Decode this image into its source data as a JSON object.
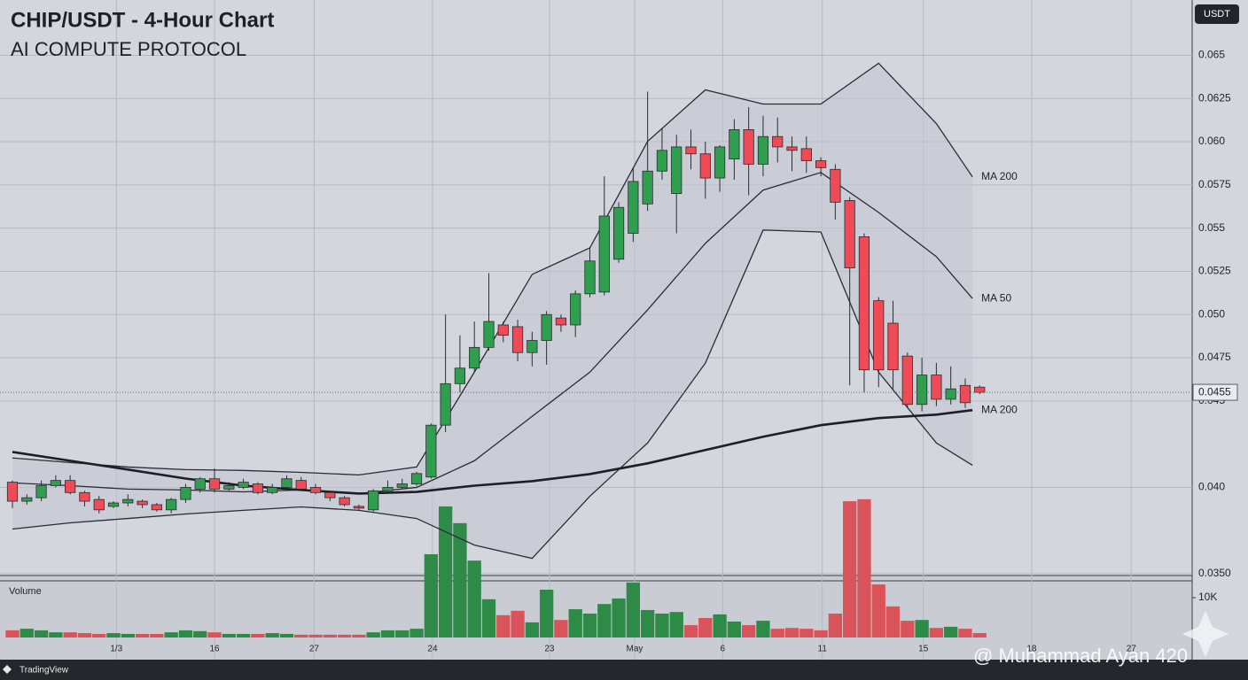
{
  "chart_data": {
    "type": "candlestick",
    "title": "CHIP/USDT - 4-Hour Chart",
    "subtitle": "AI COMPUTE PROTOCOL",
    "currency_button": "USDT",
    "volume_label": "Volume",
    "brand": "TradingView",
    "watermark": "@ Muhammad Ayan 420",
    "up_color": "#2f9e4f",
    "down_color": "#ef4a55",
    "grid": true,
    "xlim": [
      -0.86,
      81.72
    ],
    "xticks": [
      {
        "value": 7.2,
        "label": "1/3"
      },
      {
        "value": 14,
        "label": "16"
      },
      {
        "value": 20.9,
        "label": "27"
      },
      {
        "value": 29.1,
        "label": "24"
      },
      {
        "value": 37.2,
        "label": "23"
      },
      {
        "value": 43.1,
        "label": "May"
      },
      {
        "value": 49.2,
        "label": "6"
      },
      {
        "value": 56.1,
        "label": "11"
      },
      {
        "value": 63.1,
        "label": "15"
      },
      {
        "value": 70.6,
        "label": "18"
      },
      {
        "value": 77.5,
        "label": "27"
      }
    ],
    "ylim": [
      0.0349,
      0.0682
    ],
    "yticks": [
      0.065,
      0.0625,
      {
        "value": 0.06,
        "label": "0.060"
      },
      0.0575,
      0.055,
      0.0525,
      {
        "value": 0.05,
        "label": "0.050"
      },
      0.0475,
      0.045,
      {
        "value": 0.04,
        "label": "0.040"
      },
      {
        "value": 0.035,
        "label": "0.0350"
      }
    ],
    "last_price": 0.0455,
    "open": [
      0.0403,
      0.0392,
      0.0394,
      0.0401,
      0.0404,
      0.0397,
      0.0393,
      0.0389,
      0.0391,
      0.0392,
      0.039,
      0.0387,
      0.0393,
      0.0399,
      0.0405,
      0.0399,
      0.04,
      0.0402,
      0.0397,
      0.04,
      0.0404,
      0.04,
      0.0397,
      0.0394,
      0.0389,
      0.0387,
      0.0398,
      0.04,
      0.0402,
      0.0406,
      0.0436,
      0.046,
      0.0469,
      0.0481,
      0.0494,
      0.0493,
      0.0478,
      0.0485,
      0.0498,
      0.0494,
      0.0512,
      0.0513,
      0.0532,
      0.0547,
      0.0564,
      0.0583,
      0.057,
      0.0597,
      0.0593,
      0.0579,
      0.059,
      0.0607,
      0.0587,
      0.0603,
      0.0597,
      0.0596,
      0.0589,
      0.0584,
      0.0566,
      0.0545,
      0.0508,
      0.0495,
      0.0476,
      0.0448,
      0.0465,
      0.0451,
      0.0459,
      0.0458
    ],
    "high": [
      0.0404,
      0.0396,
      0.0404,
      0.0407,
      0.0407,
      0.0398,
      0.0395,
      0.0392,
      0.0396,
      0.0393,
      0.0391,
      0.0394,
      0.0402,
      0.0406,
      0.0411,
      0.0403,
      0.0405,
      0.0403,
      0.0402,
      0.0407,
      0.0406,
      0.0402,
      0.0398,
      0.0395,
      0.039,
      0.0399,
      0.0404,
      0.0405,
      0.0409,
      0.0437,
      0.05,
      0.0488,
      0.0496,
      0.0524,
      0.0496,
      0.0497,
      0.049,
      0.0502,
      0.05,
      0.0514,
      0.0539,
      0.058,
      0.0565,
      0.0585,
      0.0629,
      0.0608,
      0.0604,
      0.0607,
      0.06,
      0.0598,
      0.0613,
      0.062,
      0.0615,
      0.0614,
      0.0603,
      0.0603,
      0.0591,
      0.0587,
      0.0568,
      0.0547,
      0.051,
      0.0508,
      0.0478,
      0.0475,
      0.0472,
      0.047,
      0.0463,
      0.0459
    ],
    "low": [
      0.0388,
      0.039,
      0.0392,
      0.04,
      0.0396,
      0.0389,
      0.0385,
      0.0388,
      0.0389,
      0.0388,
      0.0386,
      0.0385,
      0.0391,
      0.0397,
      0.0397,
      0.0398,
      0.0399,
      0.0396,
      0.0396,
      0.0399,
      0.0398,
      0.0396,
      0.0392,
      0.0389,
      0.0387,
      0.0386,
      0.0397,
      0.0399,
      0.0401,
      0.0405,
      0.0432,
      0.0455,
      0.0467,
      0.0479,
      0.0484,
      0.0473,
      0.047,
      0.0471,
      0.049,
      0.0487,
      0.051,
      0.0511,
      0.053,
      0.0542,
      0.056,
      0.0578,
      0.0547,
      0.0584,
      0.0567,
      0.0571,
      0.0578,
      0.0569,
      0.058,
      0.0588,
      0.0583,
      0.0582,
      0.058,
      0.0555,
      0.0459,
      0.0455,
      0.0458,
      0.0457,
      0.0446,
      0.0444,
      0.0447,
      0.0448,
      0.0446,
      0.0454
    ],
    "close": [
      0.0392,
      0.0394,
      0.0401,
      0.0404,
      0.0397,
      0.0392,
      0.0387,
      0.0391,
      0.0393,
      0.039,
      0.0387,
      0.0393,
      0.04,
      0.0405,
      0.0399,
      0.0401,
      0.0403,
      0.0397,
      0.04,
      0.0405,
      0.0399,
      0.0397,
      0.0394,
      0.039,
      0.0388,
      0.0398,
      0.04,
      0.0402,
      0.0408,
      0.0436,
      0.046,
      0.0469,
      0.0481,
      0.0496,
      0.0488,
      0.0478,
      0.0485,
      0.05,
      0.0494,
      0.0512,
      0.0531,
      0.0557,
      0.0562,
      0.0577,
      0.0583,
      0.0595,
      0.0597,
      0.0593,
      0.0579,
      0.0597,
      0.0607,
      0.0587,
      0.0603,
      0.0597,
      0.0595,
      0.0589,
      0.0585,
      0.0565,
      0.0527,
      0.0468,
      0.0468,
      0.0468,
      0.0448,
      0.0465,
      0.0451,
      0.0457,
      0.0449,
      0.0455
    ],
    "volume": [
      1800,
      2200,
      1800,
      1300,
      1300,
      1100,
      900,
      1100,
      900,
      900,
      900,
      1300,
      1800,
      1600,
      1300,
      900,
      900,
      900,
      1100,
      900,
      700,
      700,
      700,
      700,
      700,
      1300,
      1800,
      1800,
      2200,
      20900,
      32900,
      28700,
      19300,
      9600,
      5600,
      6700,
      3800,
      12000,
      4400,
      7100,
      6000,
      8400,
      9800,
      13800,
      6900,
      6000,
      6400,
      3100,
      4900,
      5800,
      4000,
      3100,
      4200,
      2200,
      2400,
      2200,
      1800,
      6000,
      34200,
      34700,
      13300,
      7800,
      4200,
      4400,
      2400,
      2700,
      2200,
      1100
    ],
    "volume_lim": [
      0,
      36000
    ],
    "volume_ticks": [
      {
        "value": 10000,
        "label": "10K"
      }
    ],
    "volume_up_color": "#2e8a47",
    "volume_down_color": "#d9545a",
    "overlays": [
      {
        "name": "MA 200",
        "color": "#2a2c33",
        "width": 1.3,
        "x": [
          0,
          4,
          8,
          12,
          16,
          20,
          24,
          28,
          32,
          36,
          40,
          44,
          48,
          52,
          56,
          60,
          64,
          66.5
        ],
        "values": [
          0.0417,
          0.04144,
          0.04118,
          0.04103,
          0.04098,
          0.04087,
          0.04072,
          0.04118,
          0.04667,
          0.05232,
          0.05386,
          0.06002,
          0.063,
          0.06218,
          0.06218,
          0.06454,
          0.06105,
          0.05797
        ]
      },
      {
        "name": "MA 50",
        "color": "#2a2c33",
        "width": 1.3,
        "x": [
          0,
          4,
          8,
          12,
          16,
          20,
          24,
          28,
          32,
          36,
          40,
          44,
          48,
          52,
          56,
          60,
          64,
          66.5
        ],
        "values": [
          0.04026,
          0.0401,
          0.0399,
          0.03985,
          0.03974,
          0.03985,
          0.03964,
          0.04,
          0.04154,
          0.04411,
          0.04667,
          0.05027,
          0.05412,
          0.0572,
          0.05822,
          0.05591,
          0.05335,
          0.05093
        ]
      },
      {
        "color": "#2a2c33",
        "width": 1.3,
        "x": [
          0,
          4,
          8,
          12,
          16,
          20,
          24,
          28,
          32,
          36,
          40,
          44,
          48,
          52,
          56,
          60,
          64,
          66.5
        ],
        "values": [
          0.03759,
          0.03795,
          0.0382,
          0.03846,
          0.03867,
          0.03887,
          0.03867,
          0.0382,
          0.03666,
          0.03589,
          0.03949,
          0.04257,
          0.04719,
          0.05489,
          0.05478,
          0.04667,
          0.04257,
          0.04128
        ]
      },
      {
        "name": "MA 200",
        "color": "#1d1f26",
        "width": 2.6,
        "x": [
          0,
          4,
          8,
          12,
          16,
          20,
          24,
          28,
          32,
          36,
          40,
          44,
          48,
          52,
          56,
          60,
          64,
          66.5
        ],
        "values": [
          0.04205,
          0.04154,
          0.04103,
          0.04051,
          0.0401,
          0.03985,
          0.03964,
          0.03974,
          0.0401,
          0.04036,
          0.04077,
          0.04139,
          0.04216,
          0.04293,
          0.0436,
          0.04401,
          0.04421,
          0.04447
        ]
      }
    ]
  }
}
